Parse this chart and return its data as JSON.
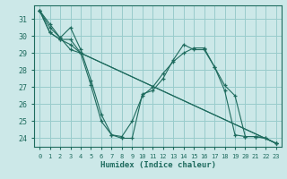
{
  "title": "",
  "xlabel": "Humidex (Indice chaleur)",
  "bg_color": "#cce8e8",
  "line_color": "#1e6b5e",
  "grid_color": "#99cccc",
  "xlim": [
    -0.5,
    23.5
  ],
  "ylim": [
    23.5,
    31.8
  ],
  "yticks": [
    24,
    25,
    26,
    27,
    28,
    29,
    30,
    31
  ],
  "xticks": [
    0,
    1,
    2,
    3,
    4,
    5,
    6,
    7,
    8,
    9,
    10,
    11,
    12,
    13,
    14,
    15,
    16,
    17,
    18,
    19,
    20,
    21,
    22,
    23
  ],
  "series": [
    {
      "x": [
        0,
        1,
        2,
        3,
        4,
        23
      ],
      "y": [
        31.5,
        30.5,
        29.9,
        29.2,
        29.0,
        23.7
      ]
    },
    {
      "x": [
        0,
        1,
        2,
        3,
        4,
        23
      ],
      "y": [
        31.5,
        30.2,
        29.8,
        29.8,
        29.0,
        23.7
      ]
    },
    {
      "x": [
        0,
        1,
        2,
        3,
        4,
        5,
        6,
        7,
        8,
        9,
        10,
        11,
        12,
        13,
        14,
        15,
        16,
        17,
        18,
        19,
        20,
        21,
        22,
        23
      ],
      "y": [
        31.5,
        30.7,
        29.9,
        30.5,
        29.2,
        27.4,
        25.4,
        24.2,
        24.1,
        25.0,
        26.5,
        27.0,
        27.8,
        28.5,
        29.0,
        29.3,
        29.3,
        28.2,
        27.1,
        26.5,
        24.1,
        24.1,
        24.0,
        23.7
      ]
    },
    {
      "x": [
        0,
        1,
        2,
        3,
        4,
        5,
        6,
        7,
        8,
        9,
        10,
        11,
        12,
        13,
        14,
        15,
        16,
        17,
        18,
        19,
        20,
        21,
        22,
        23
      ],
      "y": [
        31.5,
        30.2,
        29.8,
        29.5,
        29.0,
        27.1,
        25.0,
        24.2,
        24.0,
        24.0,
        26.6,
        26.8,
        27.5,
        28.6,
        29.5,
        29.2,
        29.2,
        28.2,
        26.8,
        24.2,
        24.1,
        24.1,
        24.0,
        23.7
      ]
    }
  ]
}
